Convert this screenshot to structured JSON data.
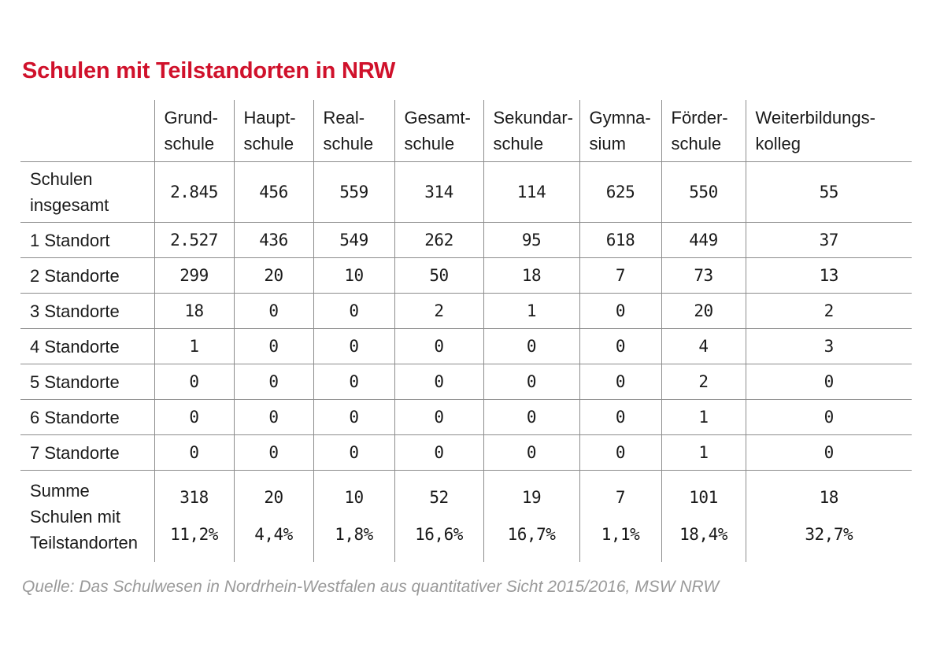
{
  "chart_data": {
    "type": "table",
    "title": "Schulen mit Teilstandorten in NRW",
    "columns": [
      [
        "Grund-",
        "schule"
      ],
      [
        "Haupt-",
        "schule"
      ],
      [
        "Real-",
        "schule"
      ],
      [
        "Gesamt-",
        "schule"
      ],
      [
        "Sekundar-",
        "schule"
      ],
      [
        "Gymna-",
        "sium"
      ],
      [
        "Förder-",
        "schule"
      ],
      [
        "Weiterbildungs-",
        "kolleg"
      ]
    ],
    "rows": [
      {
        "label": [
          "Schulen",
          "insgesamt"
        ],
        "values": [
          "2.845",
          "456",
          "559",
          "314",
          "114",
          "625",
          "550",
          "55"
        ]
      },
      {
        "label": [
          "1 Standort"
        ],
        "values": [
          "2.527",
          "436",
          "549",
          "262",
          "95",
          "618",
          "449",
          "37"
        ]
      },
      {
        "label": [
          "2 Standorte"
        ],
        "values": [
          "299",
          "20",
          "10",
          "50",
          "18",
          "7",
          "73",
          "13"
        ]
      },
      {
        "label": [
          "3 Standorte"
        ],
        "values": [
          "18",
          "0",
          "0",
          "2",
          "1",
          "0",
          "20",
          "2"
        ]
      },
      {
        "label": [
          "4 Standorte"
        ],
        "values": [
          "1",
          "0",
          "0",
          "0",
          "0",
          "0",
          "4",
          "3"
        ]
      },
      {
        "label": [
          "5 Standorte"
        ],
        "values": [
          "0",
          "0",
          "0",
          "0",
          "0",
          "0",
          "2",
          "0"
        ]
      },
      {
        "label": [
          "6 Standorte"
        ],
        "values": [
          "0",
          "0",
          "0",
          "0",
          "0",
          "0",
          "1",
          "0"
        ]
      },
      {
        "label": [
          "7 Standorte"
        ],
        "values": [
          "0",
          "0",
          "0",
          "0",
          "0",
          "0",
          "1",
          "0"
        ]
      }
    ],
    "sum_row": {
      "label": [
        "Summe",
        "Schulen mit",
        "Teilstandorten"
      ],
      "values": [
        "318",
        "20",
        "10",
        "52",
        "19",
        "7",
        "101",
        "18"
      ],
      "percentages": [
        "11,2%",
        "4,4%",
        "1,8%",
        "16,6%",
        "16,7%",
        "1,1%",
        "18,4%",
        "32,7%"
      ]
    },
    "source": "Quelle: Das Schulwesen in Nordrhein-Westfalen aus quantitativer Sicht 2015/2016, MSW NRW"
  },
  "colors": {
    "title": "#d0112b",
    "source": "#9a9a9a",
    "rules": "#8c8c8c"
  }
}
